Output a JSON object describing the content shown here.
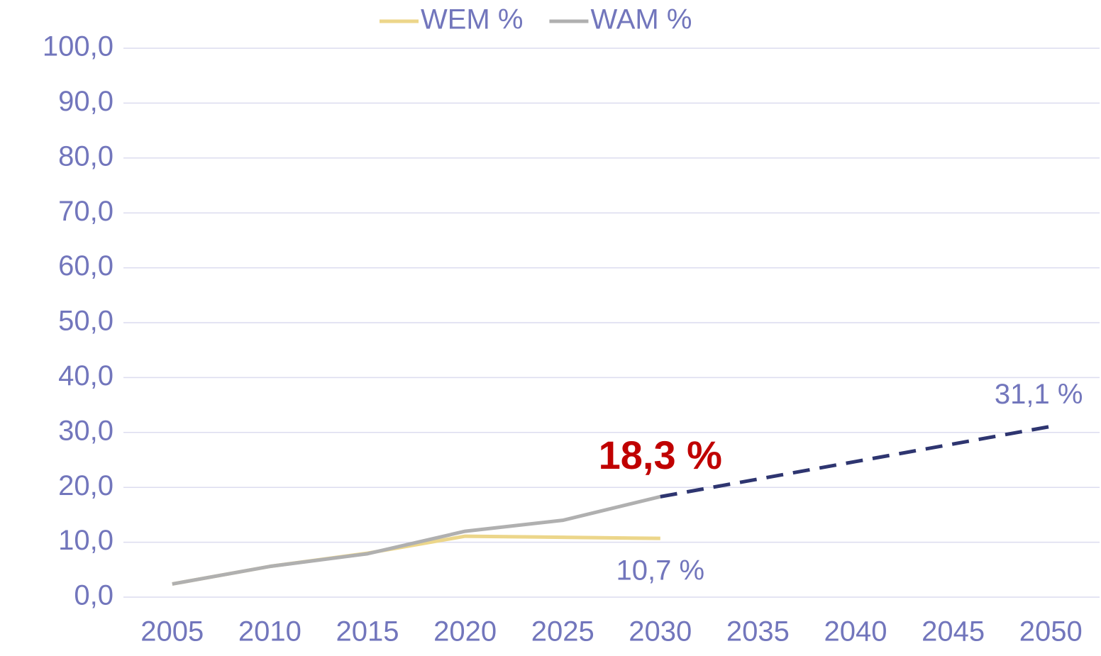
{
  "chart_data": {
    "type": "line",
    "categories": [
      "2005",
      "2010",
      "2015",
      "2020",
      "2025",
      "2030",
      "2035",
      "2040",
      "2045",
      "2050"
    ],
    "series": [
      {
        "name": "WEM %",
        "color": "#ecd68a",
        "values": [
          2.4,
          5.6,
          8.0,
          11.1,
          10.9,
          10.7,
          null,
          null,
          null,
          null
        ],
        "value_labels": [
          null,
          null,
          null,
          null,
          null,
          "10,7 %",
          null,
          null,
          null,
          null
        ],
        "label_position": "below",
        "label_color": "#7276bc"
      },
      {
        "name": "WAM %",
        "color": "#b0b0b0",
        "values": [
          2.4,
          5.6,
          7.9,
          12.0,
          14.0,
          18.3,
          null,
          null,
          null,
          null
        ],
        "value_labels": [
          null,
          null,
          null,
          null,
          null,
          "18,3 %",
          null,
          null,
          null,
          null
        ],
        "label_position": "above",
        "label_color": "#c00000",
        "label_bold": true
      },
      {
        "color": "#2e3570",
        "dashed": true,
        "values": [
          null,
          null,
          null,
          null,
          null,
          18.3,
          21.5,
          24.7,
          27.9,
          31.1
        ],
        "value_labels": [
          null,
          null,
          null,
          null,
          null,
          null,
          null,
          null,
          null,
          "31,1 %"
        ],
        "label_position": "above",
        "label_color": "#7276bc"
      }
    ],
    "ylim": [
      0,
      100
    ],
    "yticks": [
      {
        "value": 0,
        "label": "0,0"
      },
      {
        "value": 10,
        "label": "10,0"
      },
      {
        "value": 20,
        "label": "20,0"
      },
      {
        "value": 30,
        "label": "30,0"
      },
      {
        "value": 40,
        "label": "40,0"
      },
      {
        "value": 50,
        "label": "50,0"
      },
      {
        "value": 60,
        "label": "60,0"
      },
      {
        "value": 70,
        "label": "70,0"
      },
      {
        "value": 80,
        "label": "80,0"
      },
      {
        "value": 90,
        "label": "90,0"
      },
      {
        "value": 100,
        "label": "100,0"
      }
    ],
    "grid": true,
    "legend": "top"
  }
}
